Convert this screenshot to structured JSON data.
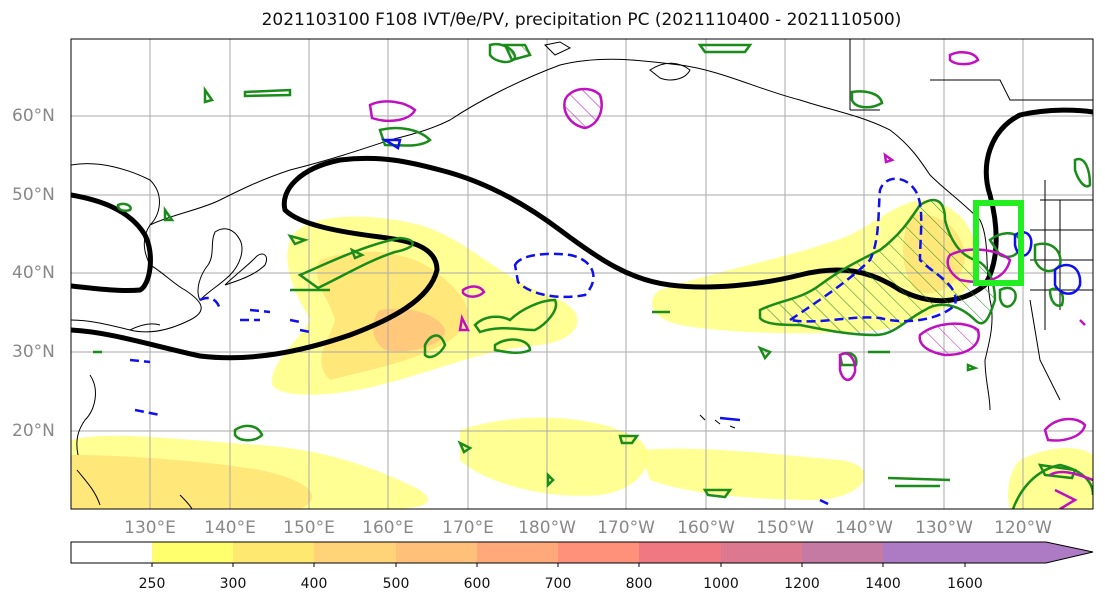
{
  "title": "2021103100 F108 IVT/θe/PV, precipitation PC (2021110400 - 2021110500)",
  "map": {
    "lat_labels": [
      "60°N",
      "50°N",
      "40°N",
      "30°N",
      "20°N"
    ],
    "lon_labels": [
      "130°E",
      "140°E",
      "150°E",
      "160°E",
      "170°E",
      "180°W",
      "170°W",
      "160°W",
      "150°W",
      "140°W",
      "130°W",
      "120°W"
    ],
    "colors": {
      "contour_positive": "#1a8c1a",
      "contour_negative": "#1010ee",
      "contour_magenta": "#c010c0",
      "jet_line": "#000000",
      "target_box": "#22ee22"
    }
  },
  "colorbar": {
    "labels": [
      "250",
      "300",
      "400",
      "500",
      "600",
      "700",
      "800",
      "1000",
      "1200",
      "1400",
      "1600"
    ],
    "colors": [
      "#ffff6e",
      "#ffe870",
      "#ffd478",
      "#ffc07a",
      "#ffa87a",
      "#ff907a",
      "#f07882",
      "#dc7890",
      "#c47aa2",
      "#ad7ac4"
    ]
  }
}
